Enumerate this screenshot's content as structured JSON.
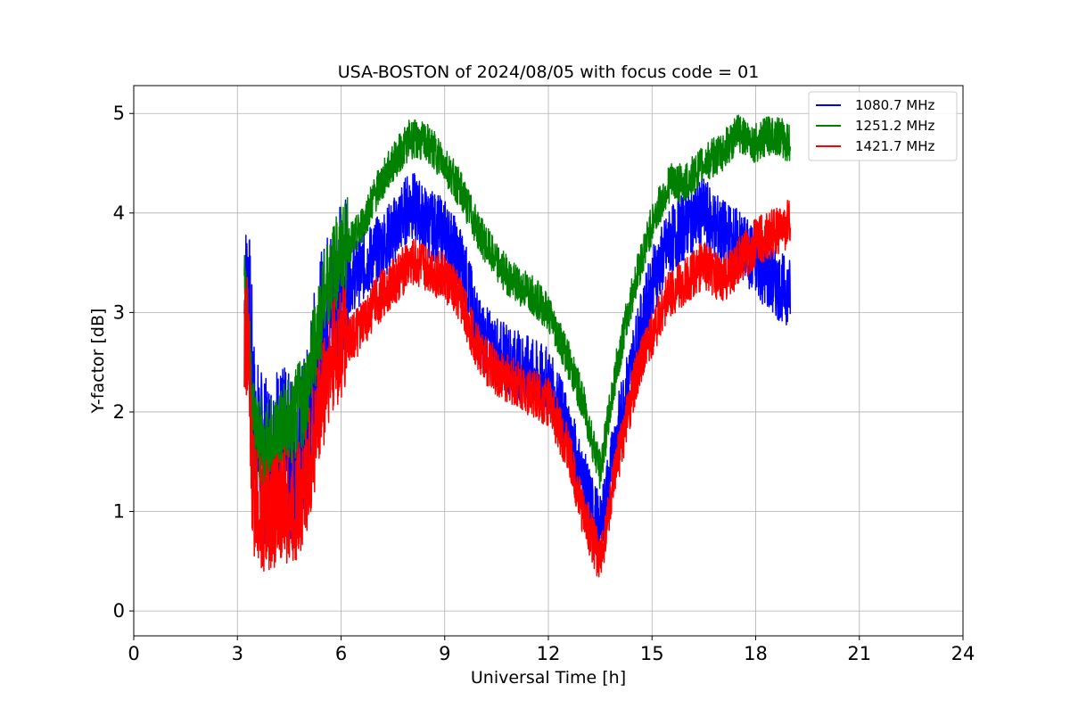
{
  "chart_data": {
    "type": "line",
    "title": "USA-BOSTON of 2024/08/05 with focus code = 01",
    "xlabel": "Universal Time [h]",
    "ylabel": "Y-factor [dB]",
    "xlim": [
      0,
      24
    ],
    "ylim": [
      -0.25,
      5.28
    ],
    "xticks": [
      0,
      3,
      6,
      9,
      12,
      15,
      18,
      21,
      24
    ],
    "yticks": [
      0,
      1,
      2,
      3,
      4,
      5
    ],
    "grid": true,
    "legend_position": "top-right",
    "series": [
      {
        "name": "1080.7 MHz",
        "color": "#0000ff",
        "noise": 0.35,
        "x": [
          3.2,
          3.3,
          3.4,
          3.5,
          3.8,
          4.2,
          4.6,
          5.0,
          5.3,
          5.6,
          6.0,
          6.5,
          7.0,
          7.5,
          8.0,
          8.5,
          9.0,
          9.5,
          10.0,
          10.5,
          11.0,
          11.5,
          12.0,
          12.5,
          13.0,
          13.5,
          14.0,
          14.5,
          15.0,
          15.5,
          16.0,
          16.5,
          17.0,
          17.5,
          18.0,
          18.5,
          19.0
        ],
        "y": [
          3.0,
          3.3,
          2.6,
          1.8,
          1.5,
          1.7,
          1.5,
          1.8,
          2.6,
          3.0,
          3.3,
          3.4,
          3.6,
          3.8,
          4.1,
          3.9,
          3.8,
          3.5,
          2.8,
          2.6,
          2.5,
          2.4,
          2.3,
          1.9,
          1.3,
          0.8,
          1.8,
          2.6,
          3.3,
          3.7,
          3.9,
          4.0,
          3.8,
          3.7,
          3.5,
          3.3,
          3.2
        ]
      },
      {
        "name": "1251.2 MHz",
        "color": "#008000",
        "noise": 0.2,
        "x": [
          3.2,
          3.3,
          3.4,
          3.5,
          3.8,
          4.2,
          4.6,
          5.0,
          5.3,
          5.6,
          6.0,
          6.5,
          7.0,
          7.5,
          8.0,
          8.5,
          9.0,
          9.5,
          10.0,
          10.5,
          11.0,
          11.5,
          12.0,
          12.5,
          13.0,
          13.5,
          14.0,
          14.5,
          15.0,
          15.5,
          16.0,
          16.5,
          17.0,
          17.5,
          18.0,
          18.5,
          19.0
        ],
        "y": [
          3.3,
          3.0,
          2.2,
          1.8,
          1.6,
          1.8,
          1.9,
          2.2,
          2.8,
          3.3,
          3.6,
          3.8,
          4.2,
          4.5,
          4.75,
          4.7,
          4.5,
          4.2,
          3.8,
          3.5,
          3.3,
          3.2,
          3.0,
          2.6,
          2.1,
          1.4,
          2.5,
          3.3,
          3.9,
          4.3,
          4.3,
          4.5,
          4.6,
          4.8,
          4.7,
          4.8,
          4.7
        ]
      },
      {
        "name": "1421.7 MHz",
        "color": "#ff0000",
        "noise": 0.25,
        "x": [
          3.2,
          3.3,
          3.4,
          3.5,
          3.8,
          4.2,
          4.6,
          5.0,
          5.3,
          5.6,
          6.0,
          6.5,
          7.0,
          7.5,
          8.0,
          8.5,
          9.0,
          9.5,
          10.0,
          10.5,
          11.0,
          11.5,
          12.0,
          12.5,
          13.0,
          13.5,
          14.0,
          14.5,
          15.0,
          15.5,
          16.0,
          16.5,
          17.0,
          17.5,
          18.0,
          18.5,
          19.0
        ],
        "y": [
          2.7,
          2.8,
          1.5,
          1.1,
          0.9,
          1.1,
          1.0,
          1.3,
          1.9,
          2.4,
          2.7,
          2.8,
          3.1,
          3.3,
          3.5,
          3.45,
          3.35,
          3.1,
          2.6,
          2.4,
          2.3,
          2.2,
          2.1,
          1.7,
          1.0,
          0.5,
          1.5,
          2.3,
          2.8,
          3.2,
          3.3,
          3.5,
          3.3,
          3.5,
          3.7,
          3.8,
          3.9
        ]
      }
    ]
  }
}
